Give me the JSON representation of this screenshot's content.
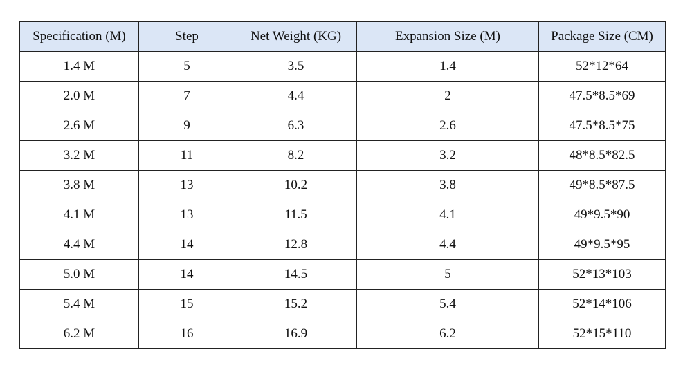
{
  "table": {
    "header": [
      "Specification (M)",
      "Step",
      "Net Weight (KG)",
      "Expansion Size (M)",
      "Package Size (CM)"
    ],
    "rows": [
      [
        "1.4 M",
        "5",
        "3.5",
        "1.4",
        "52*12*64"
      ],
      [
        "2.0 M",
        "7",
        "4.4",
        "2",
        "47.5*8.5*69"
      ],
      [
        "2.6 M",
        "9",
        "6.3",
        "2.6",
        "47.5*8.5*75"
      ],
      [
        "3.2 M",
        "11",
        "8.2",
        "3.2",
        "48*8.5*82.5"
      ],
      [
        "3.8 M",
        "13",
        "10.2",
        "3.8",
        "49*8.5*87.5"
      ],
      [
        "4.1 M",
        "13",
        "11.5",
        "4.1",
        "49*9.5*90"
      ],
      [
        "4.4 M",
        "14",
        "12.8",
        "4.4",
        "49*9.5*95"
      ],
      [
        "5.0 M",
        "14",
        "14.5",
        "5",
        "52*13*103"
      ],
      [
        "5.4 M",
        "15",
        "15.2",
        "5.4",
        "52*14*106"
      ],
      [
        "6.2 M",
        "16",
        "16.9",
        "6.2",
        "52*15*110"
      ]
    ]
  }
}
